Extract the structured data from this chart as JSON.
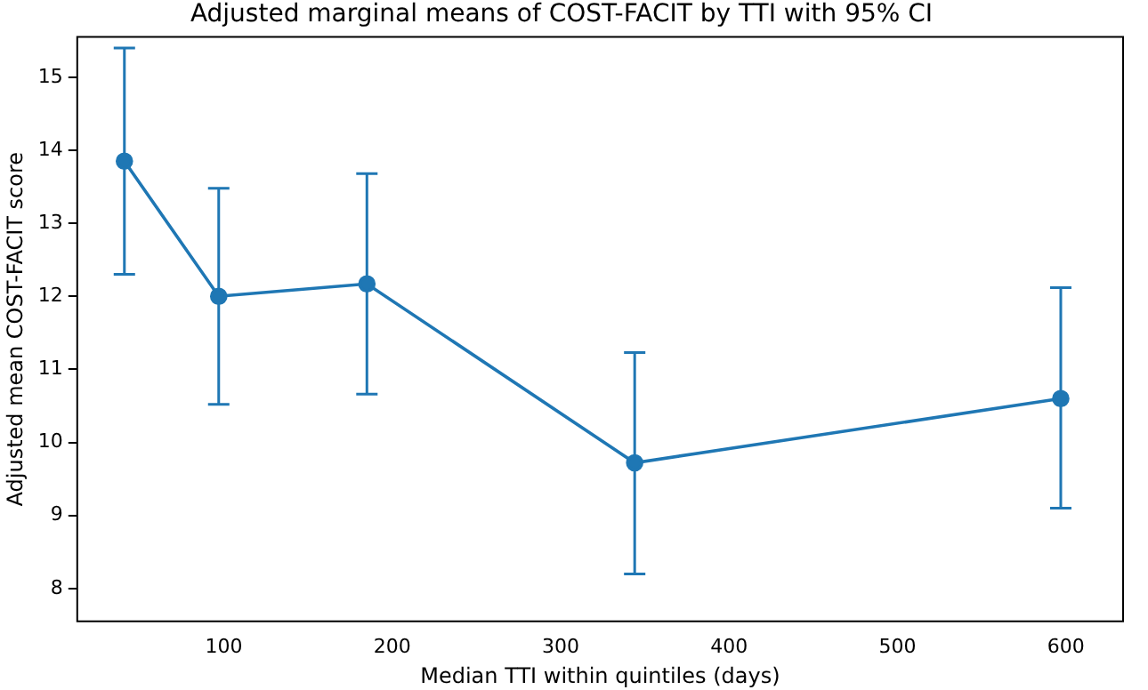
{
  "chart_data": {
    "type": "line",
    "title": "Adjusted marginal means of COST-FACIT by TTI with 95% CI",
    "xlabel": "Median TTI within quintiles (days)",
    "ylabel": "Adjusted mean COST-FACIT score",
    "x": [
      41,
      97,
      185,
      344,
      597
    ],
    "series": [
      {
        "color": "#1f77b4",
        "values": [
          13.85,
          12.0,
          12.17,
          9.72,
          10.6
        ],
        "errors": [
          [
            12.3,
            15.4
          ],
          [
            10.52,
            13.48
          ],
          [
            10.66,
            13.68
          ],
          [
            8.2,
            11.23
          ],
          [
            9.1,
            12.12
          ]
        ]
      }
    ],
    "xlim": [
      13,
      634
    ],
    "xticks": [
      100,
      200,
      300,
      400,
      500,
      600
    ],
    "ylim": [
      7.55,
      15.55
    ],
    "yticks": [
      8,
      9,
      10,
      11,
      12,
      13,
      14,
      15
    ],
    "marker": "circle",
    "grid": false,
    "legend": false
  }
}
